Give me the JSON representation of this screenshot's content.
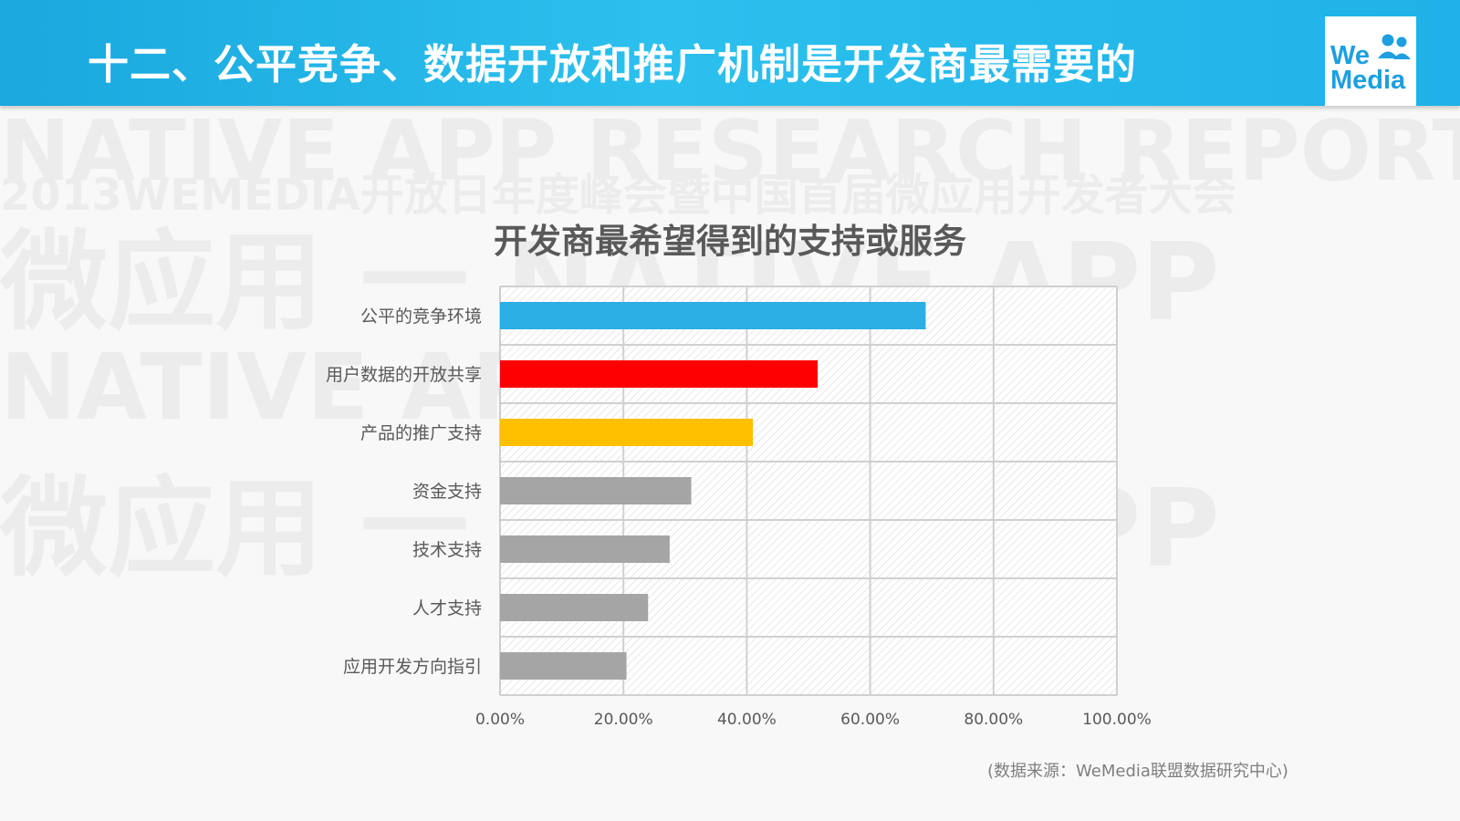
{
  "header": {
    "title": "十二、公平竞争、数据开放和推广机制是开发商最需要的",
    "logo_line1": "We",
    "logo_line2": "Media"
  },
  "watermark": {
    "line1": "NATIVE APP RESEARCH REPORT",
    "line2": "2013WEMEDIA开放日年度峰会暨中国首届微应用开发者大会",
    "line3": "微应用 一 NATIVE APP",
    "line4": "NATIVE APP REPORT",
    "line5": "微应用 一 NATIVE APP"
  },
  "colors": {
    "header_blue": "#1eb2e8",
    "bar_blue": "#2aaee3",
    "bar_red": "#ff0000",
    "bar_yellow": "#ffc000",
    "bar_gray": "#a5a5a5"
  },
  "chart_data": {
    "type": "bar",
    "orientation": "horizontal",
    "title": "开发商最希望得到的支持或服务",
    "categories": [
      "公平的竞争环境",
      "用户数据的开放共享",
      "产品的推广支持",
      "资金支持",
      "技术支持",
      "人才支持",
      "应用开发方向指引"
    ],
    "values": [
      0.69,
      0.515,
      0.41,
      0.31,
      0.275,
      0.24,
      0.205
    ],
    "bar_colors": [
      "#2aaee3",
      "#ff0000",
      "#ffc000",
      "#a5a5a5",
      "#a5a5a5",
      "#a5a5a5",
      "#a5a5a5"
    ],
    "xlim": [
      0,
      1
    ],
    "x_ticks": [
      "0.00%",
      "20.00%",
      "40.00%",
      "60.00%",
      "80.00%",
      "100.00%"
    ],
    "grid": true,
    "legend": "none"
  },
  "source": "(数据来源：WeMedia联盟数据研究中心)"
}
